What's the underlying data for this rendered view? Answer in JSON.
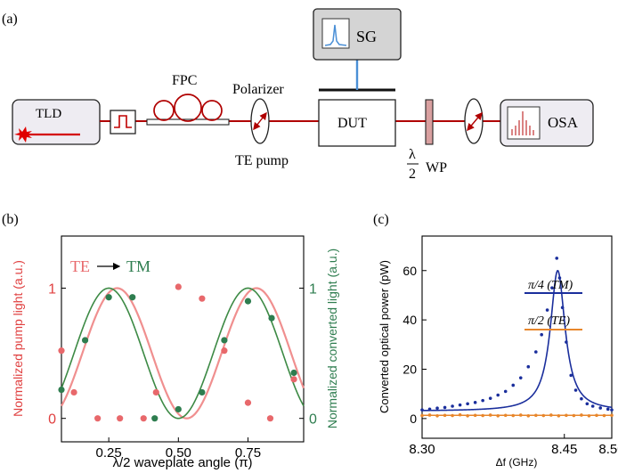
{
  "panels": {
    "a": "(a)",
    "b": "(b)",
    "c": "(c)"
  },
  "setup": {
    "tld": "TLD",
    "fpc": "FPC",
    "polarizer": "Polarizer",
    "te_pump": "TE pump",
    "dut": "DUT",
    "sg": "SG",
    "osa": "OSA",
    "wp_num": "λ",
    "wp_den": "2",
    "wp": "WP",
    "colors": {
      "fiber": "#b00000",
      "box": "#eeecf2",
      "sg_box": "#d4d4d4",
      "rf": "#4a8fd6",
      "wp_fill": "#d9a0a0"
    }
  },
  "chart_data": [
    {
      "type": "scatter",
      "panel": "(b)",
      "legend_text_left": "TE",
      "legend_text_right": "TM",
      "xlabel": "λ/2 waveplate angle (π)",
      "ylabel_left": "Normalized pump light (a.u.)",
      "ylabel_right": "Normalized converted light (a.u.)",
      "xlim": [
        0.08,
        0.95
      ],
      "ylim": [
        -0.18,
        1.4
      ],
      "xticks": [
        "0.25",
        "0.50",
        "0.75"
      ],
      "xtick_values": [
        0.25,
        0.5,
        0.75
      ],
      "yticks_left": [
        "0",
        "1"
      ],
      "yticks_right": [
        "0",
        "1"
      ],
      "ytick_values": [
        0,
        1
      ],
      "colors": {
        "pump": "#e8686b",
        "pump_line": "#f08f8f",
        "converted": "#2e7d4f",
        "converted_line": "#3d8a45"
      },
      "series": [
        {
          "key": "pump",
          "x": [
            0.08,
            0.125,
            0.21,
            0.29,
            0.375,
            0.42,
            0.5,
            0.585,
            0.665,
            0.75,
            0.83,
            0.915
          ],
          "y": [
            0.52,
            0.2,
            0.0,
            0.0,
            0.0,
            0.2,
            1.01,
            0.92,
            0.52,
            0.12,
            0.0,
            0.3
          ]
        },
        {
          "key": "converted",
          "x": [
            0.08,
            0.165,
            0.25,
            0.335,
            0.415,
            0.5,
            0.585,
            0.665,
            0.75,
            0.835,
            0.915
          ],
          "y": [
            0.22,
            0.6,
            0.93,
            0.93,
            0.0,
            0.07,
            0.2,
            0.6,
            0.9,
            0.77,
            0.35
          ]
        }
      ],
      "fit_period": 0.5
    },
    {
      "type": "line",
      "panel": "(c)",
      "xlabel": "Δf (GHz)",
      "ylabel": "Converted optical power (pW)",
      "xlim": [
        8.3,
        8.5
      ],
      "ylim": [
        -8,
        74
      ],
      "xticks": [
        "8.30",
        "8.45",
        "8.50"
      ],
      "xtick_values": [
        8.3,
        8.45,
        8.5
      ],
      "yticks": [
        "0",
        "20",
        "40",
        "60"
      ],
      "ytick_values": [
        0,
        20,
        40,
        60
      ],
      "colors": {
        "tm": "#1a2e9c",
        "te": "#e8862b"
      },
      "series": [
        {
          "label": "π/4 (TM)",
          "key": "tm",
          "x": [
            8.3,
            8.308,
            8.316,
            8.324,
            8.332,
            8.34,
            8.348,
            8.356,
            8.364,
            8.372,
            8.38,
            8.388,
            8.396,
            8.404,
            8.412,
            8.42,
            8.426,
            8.432,
            8.437,
            8.442,
            8.445,
            8.448,
            8.452,
            8.457,
            8.462,
            8.468,
            8.474,
            8.48,
            8.488,
            8.496,
            8.5
          ],
          "y": [
            3.5,
            3.8,
            4.2,
            4.5,
            5.0,
            5.5,
            6.0,
            6.5,
            7.3,
            8.2,
            9.5,
            11.0,
            13.5,
            16.5,
            21.0,
            27.0,
            34.0,
            44.0,
            53.0,
            65.0,
            57.0,
            45.0,
            31.0,
            17.5,
            11.5,
            8.0,
            6.0,
            5.0,
            4.3,
            3.8,
            3.5
          ],
          "fit_center": 8.443,
          "fit_width": 0.0095,
          "fit_amplitude": 57,
          "fit_offset": 3.0
        },
        {
          "label": "π/2 (TE)",
          "key": "te",
          "x": [
            8.3,
            8.308,
            8.316,
            8.324,
            8.332,
            8.34,
            8.348,
            8.356,
            8.364,
            8.372,
            8.38,
            8.388,
            8.396,
            8.404,
            8.412,
            8.42,
            8.428,
            8.436,
            8.444,
            8.452,
            8.46,
            8.468,
            8.476,
            8.484,
            8.492,
            8.5
          ],
          "y": [
            1.2,
            1.4,
            1.1,
            1.3,
            1.2,
            1.5,
            1.1,
            1.3,
            1.2,
            1.4,
            1.1,
            1.3,
            1.2,
            1.4,
            1.1,
            1.3,
            1.2,
            1.4,
            1.1,
            1.3,
            1.2,
            1.4,
            1.1,
            1.3,
            1.2,
            1.3
          ],
          "fit_level": 1.3
        }
      ]
    }
  ]
}
